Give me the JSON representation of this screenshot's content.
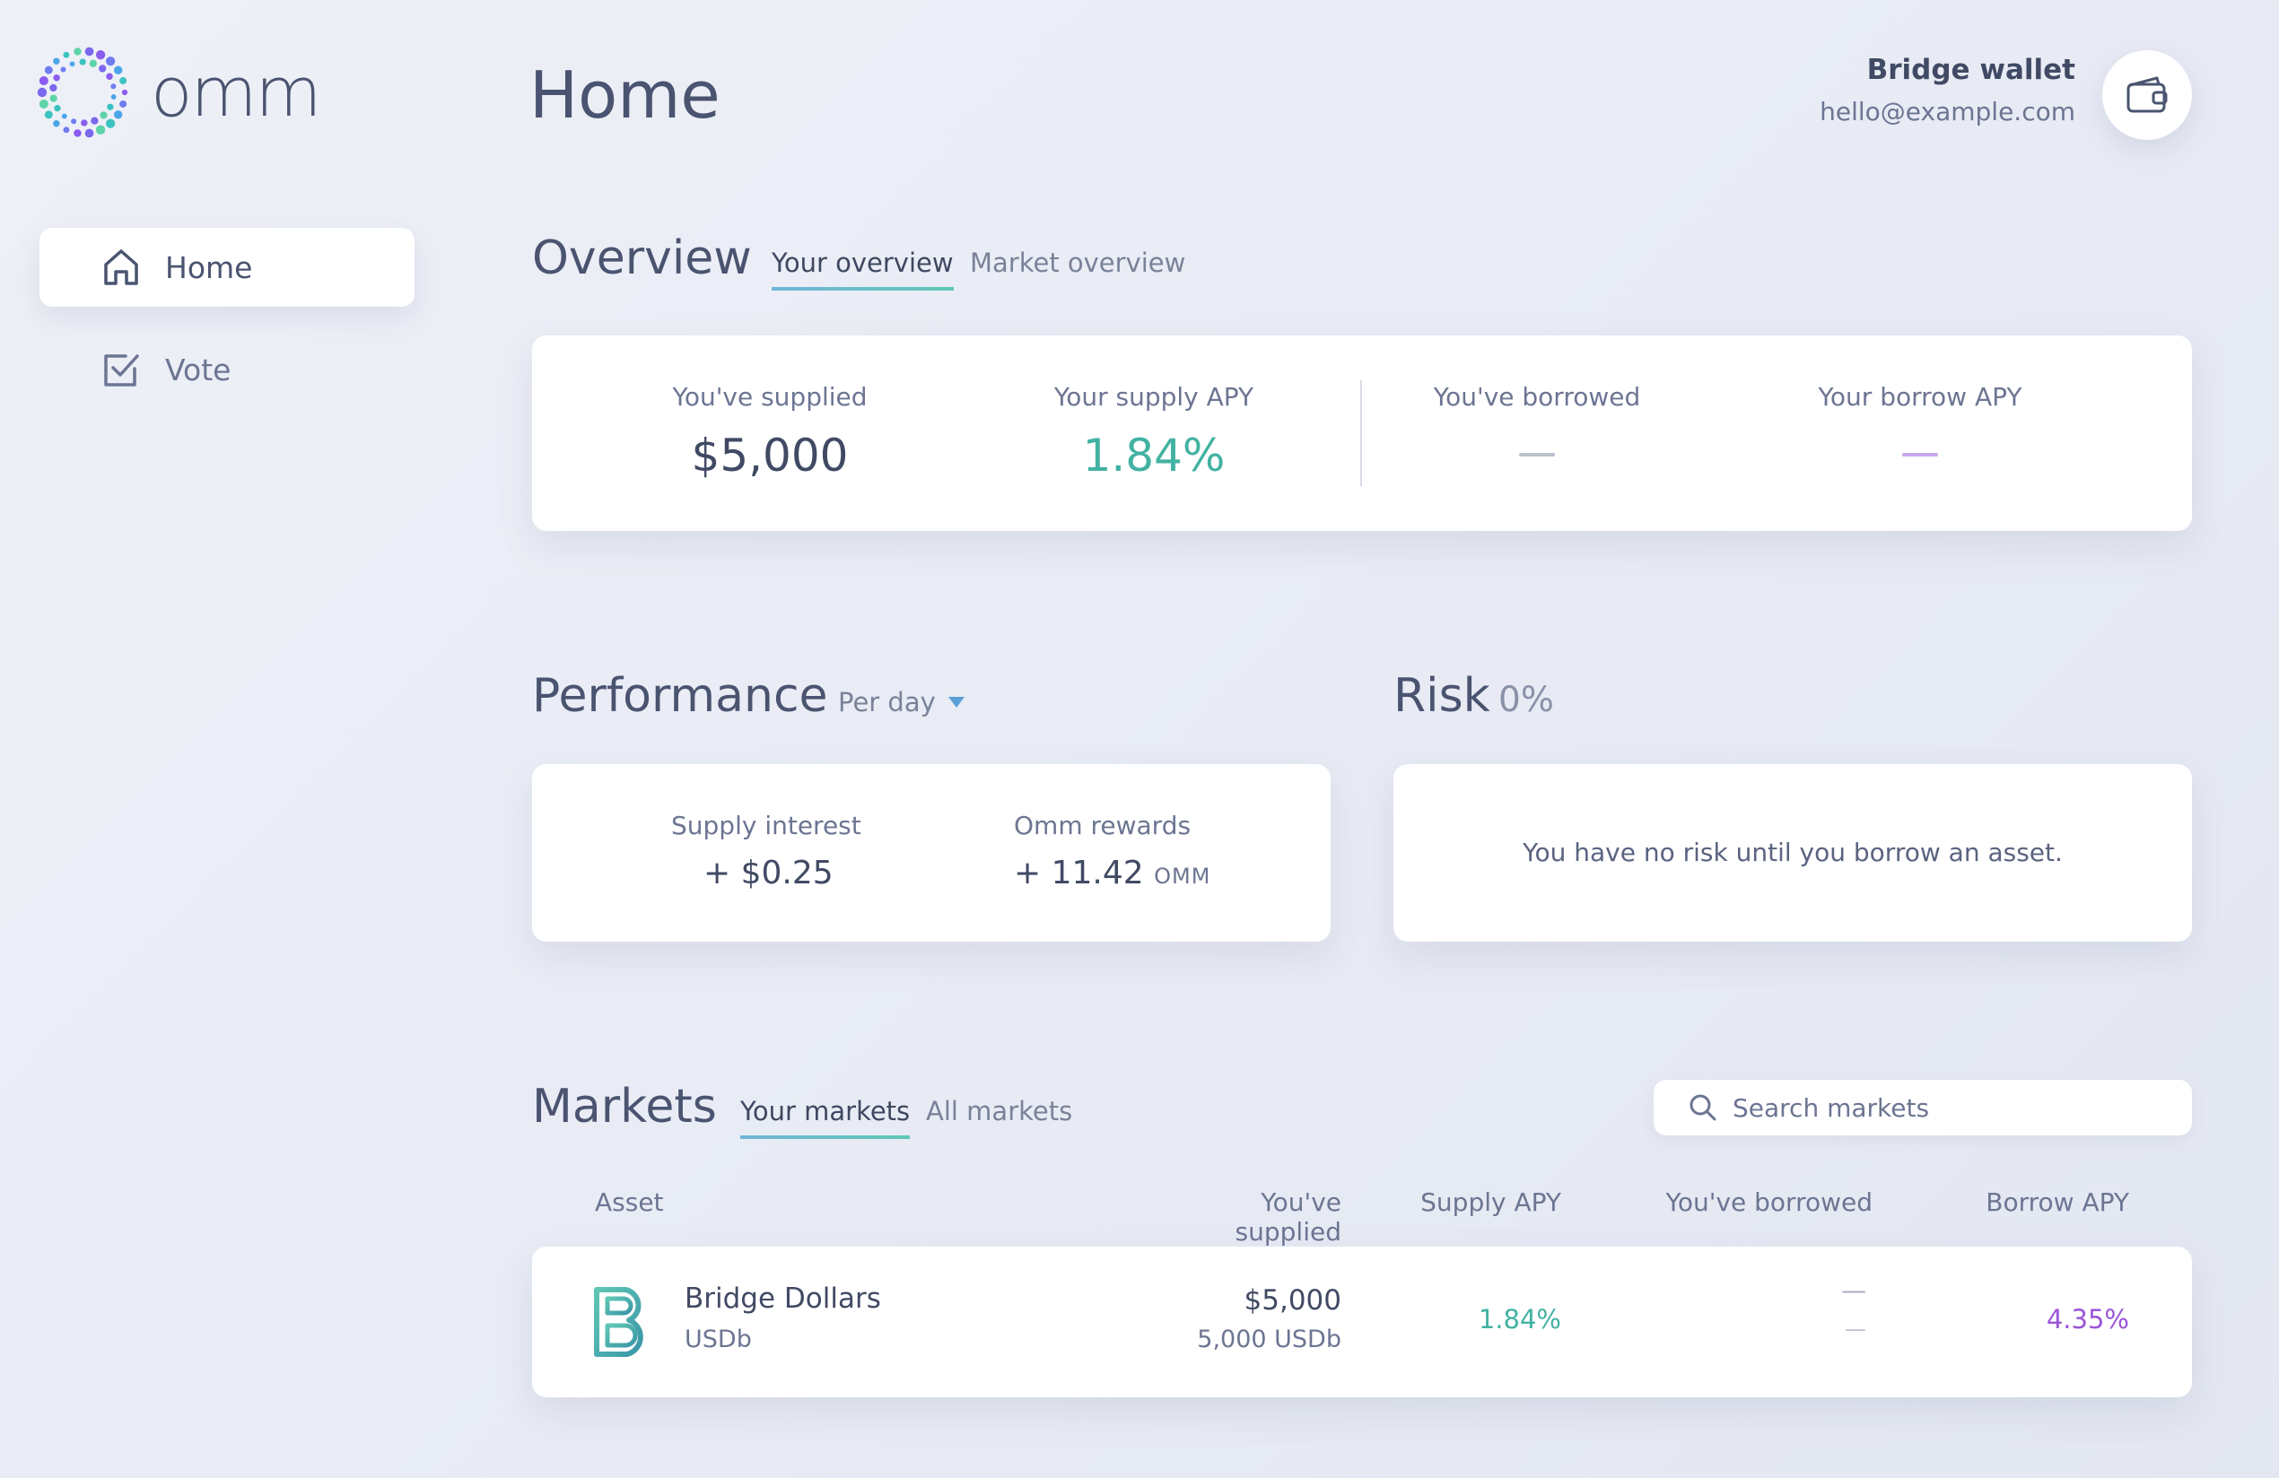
{
  "brand": {
    "name": "omm"
  },
  "sidebar": {
    "items": [
      {
        "label": "Home",
        "icon": "home-icon",
        "active": true
      },
      {
        "label": "Vote",
        "icon": "checkbox-icon",
        "active": false
      }
    ]
  },
  "header": {
    "title": "Home",
    "wallet_name": "Bridge wallet",
    "wallet_email": "hello@example.com",
    "wallet_icon": "wallet-icon"
  },
  "overview": {
    "title": "Overview",
    "tabs": [
      {
        "label": "Your overview",
        "active": true
      },
      {
        "label": "Market overview",
        "active": false
      }
    ],
    "stats": {
      "supplied_label": "You've supplied",
      "supplied_value": "$5,000",
      "supply_apy_label": "Your supply APY",
      "supply_apy_value": "1.84%",
      "borrowed_label": "You've borrowed",
      "borrow_apy_label": "Your borrow APY"
    }
  },
  "performance": {
    "title": "Performance",
    "period": "Per day",
    "supply_interest_label": "Supply interest",
    "supply_interest_value": "+ $0.25",
    "rewards_label": "Omm rewards",
    "rewards_value": "+ 11.42",
    "rewards_unit": "OMM"
  },
  "risk": {
    "title": "Risk",
    "value": "0%",
    "message": "You have no risk until you borrow an asset."
  },
  "markets": {
    "title": "Markets",
    "tabs": [
      {
        "label": "Your markets",
        "active": true
      },
      {
        "label": "All markets",
        "active": false
      }
    ],
    "search_placeholder": "Search markets",
    "columns": {
      "asset": "Asset",
      "supplied": "You've supplied",
      "supply_apy": "Supply APY",
      "borrowed": "You've borrowed",
      "borrow_apy": "Borrow APY"
    },
    "rows": [
      {
        "name": "Bridge Dollars",
        "symbol": "USDb",
        "supplied_usd": "$5,000",
        "supplied_amount": "5,000 USDb",
        "supply_apy": "1.84%",
        "borrowed_usd": "—",
        "borrowed_amount": "—",
        "borrow_apy": "4.35%"
      }
    ]
  },
  "colors": {
    "teal": "#42b2a2",
    "purple": "#9b55d8",
    "text": "#4a5470"
  }
}
